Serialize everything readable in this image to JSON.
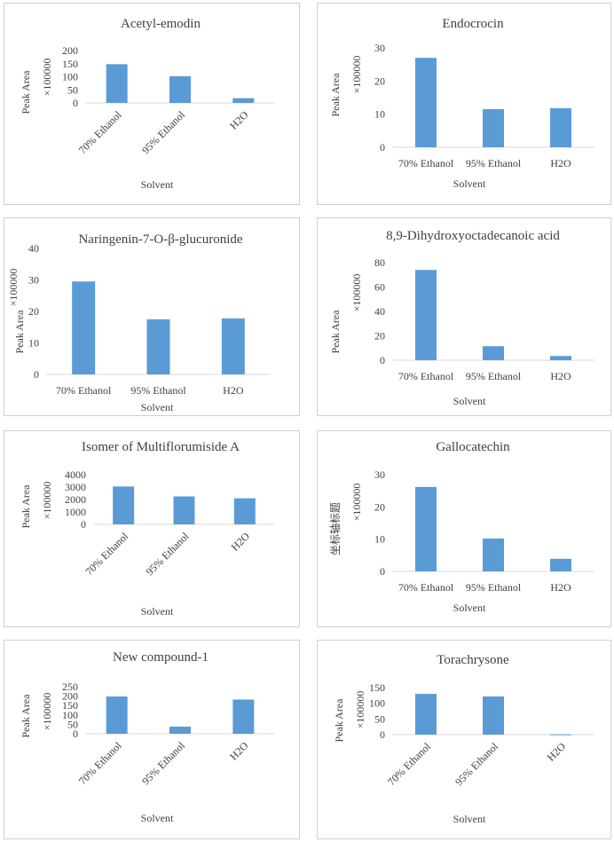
{
  "chart_data": [
    {
      "type": "bar",
      "title": "Acetyl-emodin",
      "categories": [
        "70% Ethanol",
        "95% Ethanol",
        "H2O"
      ],
      "values": [
        148,
        102,
        18
      ],
      "xlabel": "Solvent",
      "ylabel": "Peak Area",
      "yunit": "×100000",
      "ylim": [
        0,
        200
      ],
      "yticks": [
        0,
        50,
        100,
        150,
        200
      ]
    },
    {
      "type": "bar",
      "title": "Endocrocin",
      "categories": [
        "70% Ethanol",
        "95% Ethanol",
        "H2O"
      ],
      "values": [
        27,
        11.5,
        11.8
      ],
      "xlabel": "Solvent",
      "ylabel": "Peak Area",
      "yunit": "×100000",
      "ylim": [
        0,
        30
      ],
      "yticks": [
        0,
        10,
        20,
        30
      ]
    },
    {
      "type": "bar",
      "title": "Naringenin-7-O-β-glucuronide",
      "categories": [
        "70% Ethanol",
        "95% Ethanol",
        "H2O"
      ],
      "values": [
        29.5,
        17.5,
        17.8
      ],
      "xlabel": "Solvent",
      "ylabel": "Peak Area",
      "yunit": "×100000",
      "ylim": [
        0,
        40
      ],
      "yticks": [
        0,
        10,
        20,
        30,
        40
      ]
    },
    {
      "type": "bar",
      "title": "8,9-Dihydroxyoctadecanoic acid",
      "categories": [
        "70% Ethanol",
        "95% Ethanol",
        "H2O"
      ],
      "values": [
        74,
        11.5,
        3.5
      ],
      "xlabel": "Solvent",
      "ylabel": "Peak Area",
      "yunit": "×100000",
      "ylim": [
        0,
        80
      ],
      "yticks": [
        0,
        20,
        40,
        60,
        80
      ]
    },
    {
      "type": "bar",
      "title": "Isomer of Multiflorumiside A",
      "categories": [
        "70% Ethanol",
        "95% Ethanol",
        "H2O"
      ],
      "values": [
        3050,
        2250,
        2100
      ],
      "xlabel": "Solvent",
      "ylabel": "Peak Area",
      "yunit": "×100000",
      "ylim": [
        0,
        4000
      ],
      "yticks": [
        0,
        1000,
        2000,
        3000,
        4000
      ]
    },
    {
      "type": "bar",
      "title": "Gallocatechin",
      "categories": [
        "70% Ethanol",
        "95% Ethanol",
        "H2O"
      ],
      "values": [
        26.2,
        10.2,
        3.9
      ],
      "xlabel": "Solvent",
      "ylabel": "坐标轴标题",
      "yunit": "×100000",
      "ylim": [
        0,
        30
      ],
      "yticks": [
        0,
        10,
        20,
        30
      ]
    },
    {
      "type": "bar",
      "title": "New compound-1",
      "categories": [
        "70% Ethanol",
        "95% Ethanol",
        "H2O"
      ],
      "values": [
        198,
        38,
        182
      ],
      "xlabel": "Solvent",
      "ylabel": "Peak Area",
      "yunit": "×100000",
      "ylim": [
        0,
        250
      ],
      "yticks": [
        0,
        50,
        100,
        150,
        200,
        250
      ]
    },
    {
      "type": "bar",
      "title": "Torachrysone",
      "categories": [
        "70% Ethanol",
        "95% Ethanol",
        "H2O"
      ],
      "values": [
        130,
        122,
        1
      ],
      "xlabel": "Solvent",
      "ylabel": "Peak Area",
      "yunit": "×100000",
      "ylim": [
        0,
        150
      ],
      "yticks": [
        0,
        50,
        100,
        150
      ]
    }
  ]
}
